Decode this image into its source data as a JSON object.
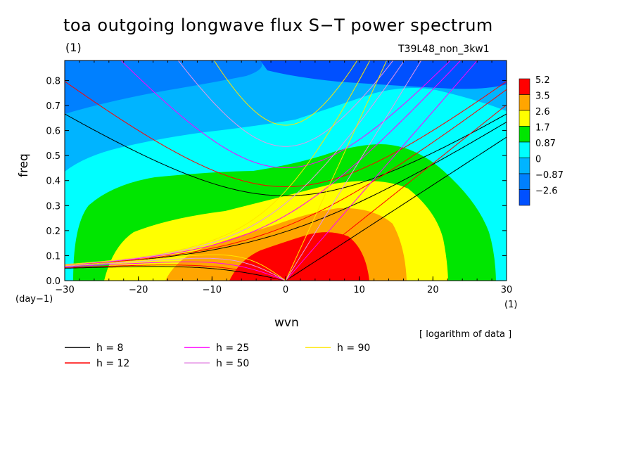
{
  "chart_data": {
    "type": "heatmap",
    "title": "toa outgoing longwave flux S−T power spectrum",
    "subtitle_left": "(1)",
    "subtitle_right": "T39L48_non_3kw1",
    "xlabel": "wvn",
    "ylabel": "freq",
    "x_unit_label": "(1)",
    "y_unit_label": "(day−1)",
    "xlim": [
      -30,
      30
    ],
    "ylim": [
      0,
      0.88
    ],
    "x_ticks": [
      "−30",
      "−20",
      "−10",
      "0",
      "10",
      "20",
      "30"
    ],
    "x_tick_values": [
      -30,
      -20,
      -10,
      0,
      10,
      20,
      30
    ],
    "y_ticks": [
      "0.0",
      "0.1",
      "0.2",
      "0.3",
      "0.4",
      "0.5",
      "0.6",
      "0.7",
      "0.8"
    ],
    "y_tick_values": [
      0,
      0.1,
      0.2,
      0.3,
      0.4,
      0.5,
      0.6,
      0.7,
      0.8
    ],
    "note": "[ logarithm of data ]",
    "colorbar": {
      "levels": [
        "5.2",
        "3.5",
        "2.6",
        "1.7",
        "0.87",
        "0",
        "−0.87",
        "−2.6"
      ],
      "colors": [
        "#ff0000",
        "#ffa500",
        "#ffff00",
        "#00e600",
        "#00ffff",
        "#00b4ff",
        "#0080ff",
        "#0050ff"
      ]
    },
    "series": [
      {
        "name": "h =  8",
        "h": 8,
        "color": "#000000"
      },
      {
        "name": "h = 12",
        "h": 12,
        "color": "#ff0000"
      },
      {
        "name": "h = 25",
        "h": 25,
        "color": "#ff00ff"
      },
      {
        "name": "h = 50",
        "h": 50,
        "color": "#e696e6"
      },
      {
        "name": "h = 90",
        "h": 90,
        "color": "#ffe600"
      }
    ]
  }
}
